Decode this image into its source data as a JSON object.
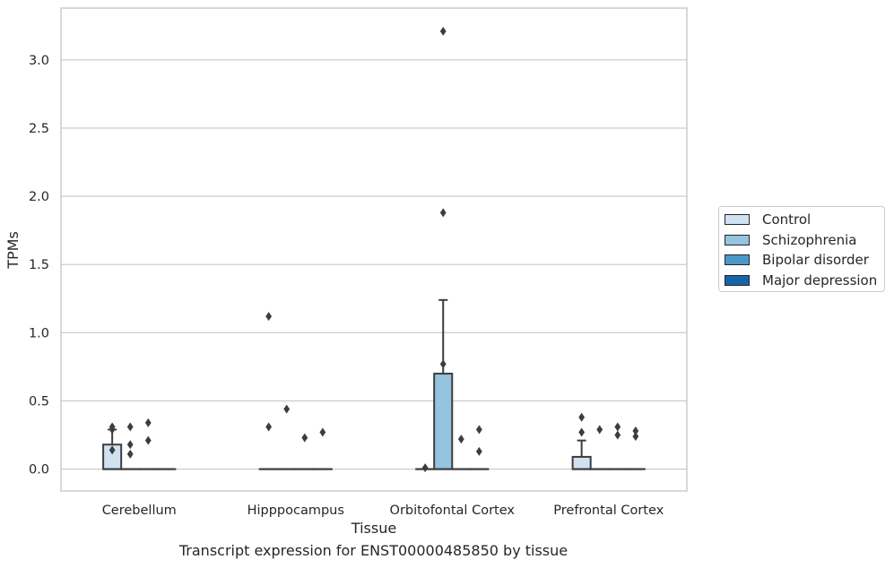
{
  "chart_data": {
    "type": "box",
    "ylabel": "TPMs",
    "xlabel": "Tissue",
    "caption": "Transcript expression for ENST00000485850 by tissue",
    "ylim": [
      -0.16,
      3.38
    ],
    "yticks": [
      0.0,
      0.5,
      1.0,
      1.5,
      2.0,
      2.5,
      3.0
    ],
    "ytick_labels": [
      "0.0",
      "0.5",
      "1.0",
      "1.5",
      "2.0",
      "2.5",
      "3.0"
    ],
    "grid": "horizontal",
    "legend_position": "right",
    "categories": [
      "Cerebellum",
      "Hipppocampus",
      "Orbitofontal Cortex",
      "Prefrontal Cortex"
    ],
    "series": [
      {
        "name": "Control",
        "color": "#d0e1f2",
        "boxes": [
          {
            "q1": 0.0,
            "median": 0.0,
            "q3": 0.18,
            "whisker_low": 0.0,
            "whisker_high": 0.29,
            "outliers": [
              0.14,
              0.29,
              0.31
            ]
          },
          {
            "q1": 0.0,
            "median": 0.0,
            "q3": 0.0,
            "whisker_low": 0.0,
            "whisker_high": 0.0,
            "outliers": [
              1.12,
              0.31
            ]
          },
          {
            "q1": 0.0,
            "median": 0.0,
            "q3": 0.0,
            "whisker_low": 0.0,
            "whisker_high": 0.0,
            "outliers": [
              0.01
            ]
          },
          {
            "q1": 0.0,
            "median": 0.0,
            "q3": 0.09,
            "whisker_low": 0.0,
            "whisker_high": 0.21,
            "outliers": [
              0.27,
              0.38
            ]
          }
        ]
      },
      {
        "name": "Schizophrenia",
        "color": "#94c4df",
        "boxes": [
          {
            "q1": 0.0,
            "median": 0.0,
            "q3": 0.0,
            "whisker_low": 0.0,
            "whisker_high": 0.0,
            "outliers": [
              0.11,
              0.18,
              0.31
            ]
          },
          {
            "q1": 0.0,
            "median": 0.0,
            "q3": 0.0,
            "whisker_low": 0.0,
            "whisker_high": 0.0,
            "outliers": [
              0.44
            ]
          },
          {
            "q1": 0.0,
            "median": 0.0,
            "q3": 0.7,
            "whisker_low": 0.0,
            "whisker_high": 1.24,
            "outliers": [
              3.21,
              1.88,
              0.77
            ]
          },
          {
            "q1": 0.0,
            "median": 0.0,
            "q3": 0.0,
            "whisker_low": 0.0,
            "whisker_high": 0.0,
            "outliers": [
              0.29
            ]
          }
        ]
      },
      {
        "name": "Bipolar disorder",
        "color": "#4a98c9",
        "boxes": [
          {
            "q1": 0.0,
            "median": 0.0,
            "q3": 0.0,
            "whisker_low": 0.0,
            "whisker_high": 0.0,
            "outliers": [
              0.21,
              0.34
            ]
          },
          {
            "q1": 0.0,
            "median": 0.0,
            "q3": 0.0,
            "whisker_low": 0.0,
            "whisker_high": 0.0,
            "outliers": [
              0.23
            ]
          },
          {
            "q1": 0.0,
            "median": 0.0,
            "q3": 0.0,
            "whisker_low": 0.0,
            "whisker_high": 0.0,
            "outliers": [
              0.22
            ]
          },
          {
            "q1": 0.0,
            "median": 0.0,
            "q3": 0.0,
            "whisker_low": 0.0,
            "whisker_high": 0.0,
            "outliers": [
              0.25,
              0.31
            ]
          }
        ]
      },
      {
        "name": "Major depression",
        "color": "#1764ab",
        "boxes": [
          {
            "q1": 0.0,
            "median": 0.0,
            "q3": 0.0,
            "whisker_low": 0.0,
            "whisker_high": 0.0,
            "outliers": []
          },
          {
            "q1": 0.0,
            "median": 0.0,
            "q3": 0.0,
            "whisker_low": 0.0,
            "whisker_high": 0.0,
            "outliers": [
              0.27
            ]
          },
          {
            "q1": 0.0,
            "median": 0.0,
            "q3": 0.0,
            "whisker_low": 0.0,
            "whisker_high": 0.0,
            "outliers": [
              0.13,
              0.29
            ]
          },
          {
            "q1": 0.0,
            "median": 0.0,
            "q3": 0.0,
            "whisker_low": 0.0,
            "whisker_high": 0.0,
            "outliers": [
              0.24,
              0.28
            ]
          }
        ]
      }
    ]
  }
}
